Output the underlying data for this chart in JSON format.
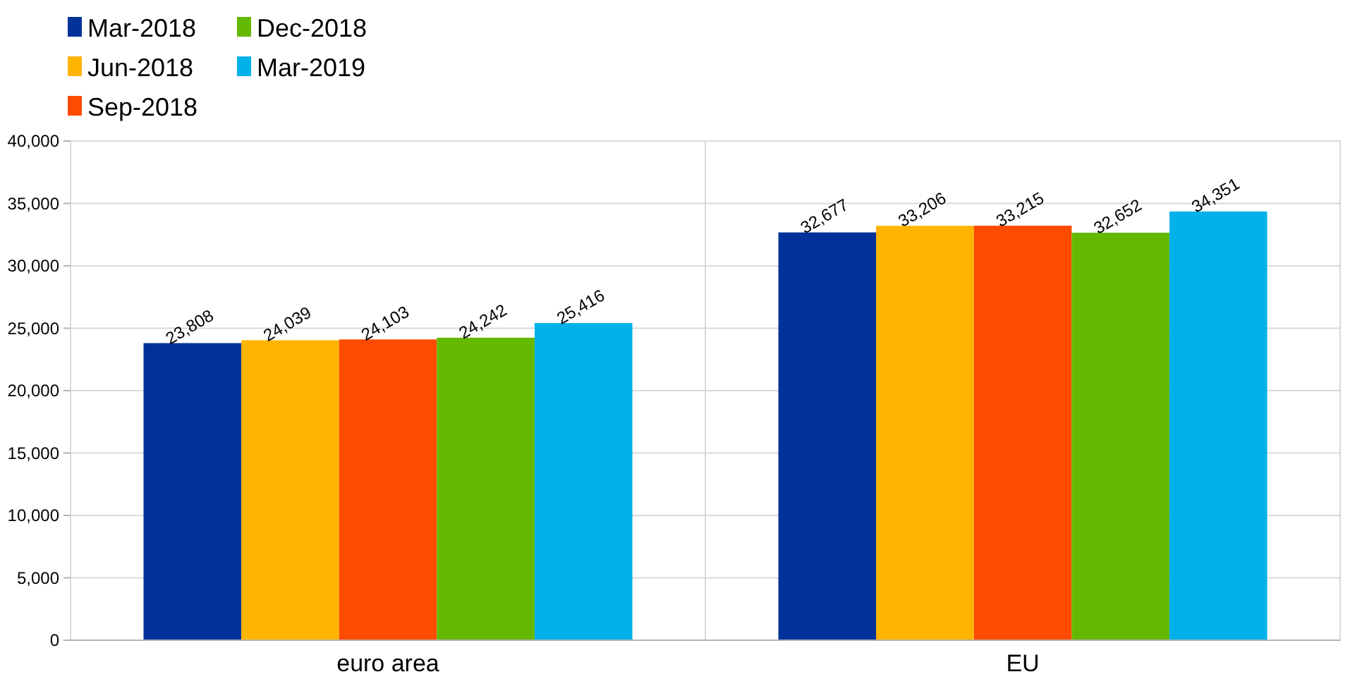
{
  "chart_data": {
    "type": "bar",
    "categories": [
      "euro area",
      "EU"
    ],
    "series": [
      {
        "name": "Mar-2018",
        "color": "#003299",
        "values": [
          23808,
          32677
        ],
        "value_labels": [
          "23,808",
          "32,677"
        ]
      },
      {
        "name": "Jun-2018",
        "color": "#ffb400",
        "values": [
          24039,
          33206
        ],
        "value_labels": [
          "24,039",
          "33,206"
        ]
      },
      {
        "name": "Sep-2018",
        "color": "#ff4b00",
        "values": [
          24103,
          33215
        ],
        "value_labels": [
          "24,103",
          "33,215"
        ]
      },
      {
        "name": "Dec-2018",
        "color": "#65b800",
        "values": [
          24242,
          32652
        ],
        "value_labels": [
          "24,242",
          "32,652"
        ]
      },
      {
        "name": "Mar-2019",
        "color": "#00b1ea",
        "values": [
          25416,
          34351
        ],
        "value_labels": [
          "25,416",
          "34,351"
        ]
      }
    ],
    "ylim": [
      0,
      40000
    ],
    "yticks": [
      {
        "value": 0,
        "label": "0"
      },
      {
        "value": 5000,
        "label": "5,000"
      },
      {
        "value": 10000,
        "label": "10,000"
      },
      {
        "value": 15000,
        "label": "15,000"
      },
      {
        "value": 20000,
        "label": "20,000"
      },
      {
        "value": 25000,
        "label": "25,000"
      },
      {
        "value": 30000,
        "label": "30,000"
      },
      {
        "value": 35000,
        "label": "35,000"
      },
      {
        "value": 40000,
        "label": "40,000"
      }
    ],
    "grid": true,
    "legend": "top left"
  }
}
